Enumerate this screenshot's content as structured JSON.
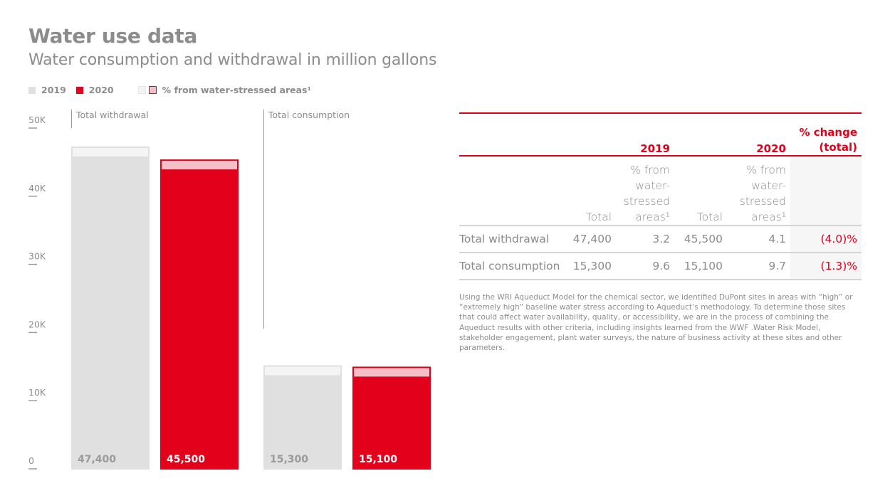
{
  "header": {
    "title": "Water use data",
    "subtitle": "Water consumption and withdrawal in million gallons"
  },
  "legend": {
    "items": [
      {
        "label": "2019",
        "color": "#e0e0e0"
      },
      {
        "label": "2020",
        "color": "#e2001a"
      },
      {
        "label": "% from water-stressed areas¹",
        "colors": [
          "#f4f4f4",
          "#f6bfc7"
        ]
      }
    ]
  },
  "colors": {
    "accent": "#e2001a",
    "bar_2019": "#e0e0e0",
    "bar_2020": "#e2001a",
    "stressed_2019": "#f4f4f4",
    "stressed_2020": "#f6bfc7",
    "text": "#8c8c8c"
  },
  "chart_data": {
    "type": "bar",
    "title": "Water use data",
    "subtitle": "Water consumption and withdrawal in million gallons",
    "xlabel": "",
    "ylabel": "",
    "ylim": [
      0,
      50000
    ],
    "yticks": [
      0,
      10000,
      20000,
      30000,
      40000,
      50000
    ],
    "ytick_labels": [
      "0",
      "10K",
      "20K",
      "30K",
      "40K",
      "50K"
    ],
    "grid": false,
    "legend_position": "top-left",
    "categories": [
      "Total withdrawal",
      "Total consumption"
    ],
    "series": [
      {
        "name": "2019",
        "values": [
          47400,
          15300
        ],
        "labels": [
          "47,400",
          "15,300"
        ],
        "pct_water_stressed": [
          3.2,
          9.6
        ]
      },
      {
        "name": "2020",
        "values": [
          45500,
          15100
        ],
        "labels": [
          "45,500",
          "15,100"
        ],
        "pct_water_stressed": [
          4.1,
          9.7
        ]
      }
    ],
    "stacked_segment": "% from water-stressed areas¹"
  },
  "table": {
    "headers": [
      "",
      "2019",
      "2020",
      "% change (total)"
    ],
    "pct_change_header_line1": "% change",
    "pct_change_header_line2": "(total)",
    "subheaders": {
      "total": "Total",
      "pct_line1": "% from",
      "pct_line2": "water-",
      "pct_line3": "stressed",
      "pct_line4": "areas¹"
    },
    "rows": [
      {
        "label": "Total withdrawal",
        "total_2019": "47,400",
        "pct_2019": "3.2",
        "total_2020": "45,500",
        "pct_2020": "4.1",
        "change": "(4.0)%"
      },
      {
        "label": "Total consumption",
        "total_2019": "15,300",
        "pct_2019": "9.6",
        "total_2020": "15,100",
        "pct_2020": "9.7",
        "change": "(1.3)%"
      }
    ]
  },
  "footnote": "Using the WRI Aqueduct Model for the chemical sector, we identified DuPont sites in areas with “high” or “extremely high” baseline water stress according to Aqueduct’s methodology. To determine those sites that could affect water availability, quality, or accessibility, we are in the process of combining the Aqueduct results with other criteria, including insights learned from the WWF .Water Risk Model, stakeholder engagement, plant water surveys, the nature of business activity at these sites and other parameters."
}
